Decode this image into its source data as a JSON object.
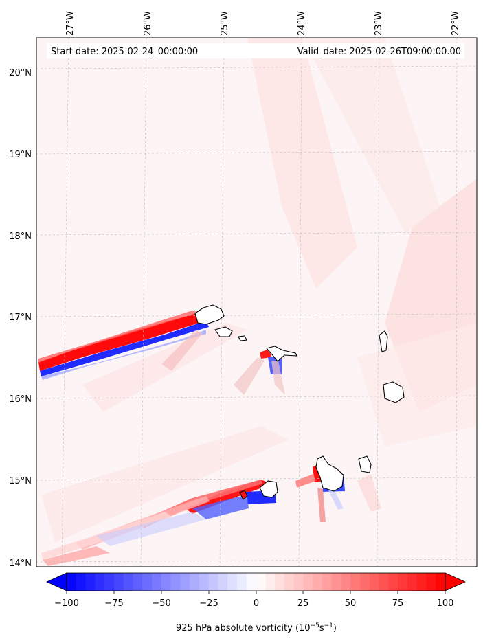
{
  "map": {
    "header": {
      "start_date": "Start date: 2025-02-24_00:00:00",
      "valid_date": "Valid_date: 2025-02-26T09:00:00.00"
    },
    "lon_labels": [
      "27°W",
      "26°W",
      "25°W",
      "24°W",
      "23°W",
      "22°W"
    ],
    "lat_labels": [
      "20°N",
      "19°N",
      "18°N",
      "17°N",
      "16°N",
      "15°N",
      "14°N"
    ],
    "colorbar": {
      "ticks": [
        "−100",
        "−75",
        "−50",
        "−25",
        "0",
        "25",
        "50",
        "75",
        "100"
      ],
      "label_main": "925 hPa absolute vorticity (10",
      "label_exp1": "−5",
      "label_mid": "s",
      "label_exp2": "−1",
      "label_end": ")",
      "min_color": "#0000ff",
      "mid_color": "#ffffff",
      "max_color": "#ff0000"
    }
  }
}
